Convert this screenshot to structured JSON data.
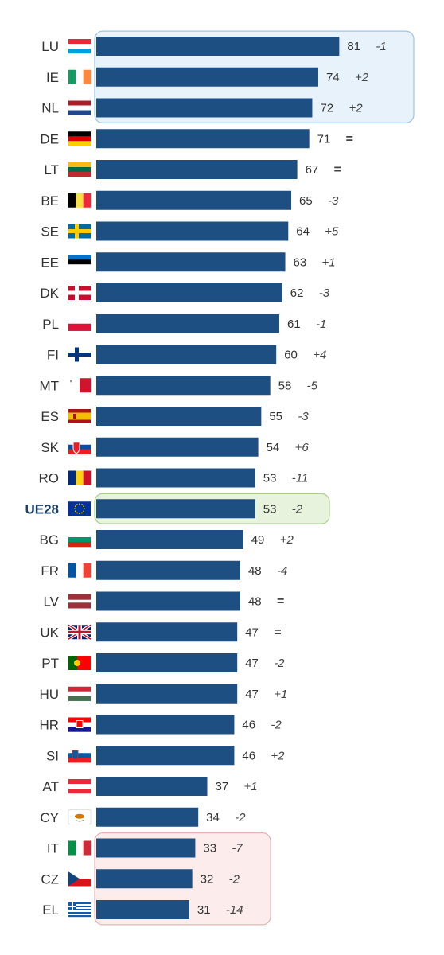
{
  "chart_data": {
    "type": "bar",
    "orientation": "horizontal",
    "categories": [
      "LU",
      "IE",
      "NL",
      "DE",
      "LT",
      "BE",
      "SE",
      "EE",
      "DK",
      "PL",
      "FI",
      "MT",
      "ES",
      "SK",
      "RO",
      "UE28",
      "BG",
      "FR",
      "LV",
      "UK",
      "PT",
      "HU",
      "HR",
      "SI",
      "AT",
      "CY",
      "IT",
      "CZ",
      "EL"
    ],
    "values": [
      81,
      74,
      72,
      71,
      67,
      65,
      64,
      63,
      62,
      61,
      60,
      58,
      55,
      54,
      53,
      53,
      49,
      48,
      48,
      47,
      47,
      47,
      46,
      46,
      37,
      34,
      33,
      32,
      31
    ],
    "changes": [
      "-1",
      "+2",
      "+2",
      "=",
      "=",
      "-3",
      "+5",
      "+1",
      "-3",
      "-1",
      "+4",
      "-5",
      "-3",
      "+6",
      "-11",
      "-2",
      "+2",
      "-4",
      "=",
      "=",
      "-2",
      "+1",
      "-2",
      "+2",
      "+1",
      "-2",
      "-7",
      "-2",
      "-14"
    ],
    "flags": [
      "luxembourg-flag",
      "ireland-flag",
      "netherlands-flag",
      "germany-flag",
      "lithuania-flag",
      "belgium-flag",
      "sweden-flag",
      "estonia-flag",
      "denmark-flag",
      "poland-flag",
      "finland-flag",
      "malta-flag",
      "spain-flag",
      "slovakia-flag",
      "romania-flag",
      "eu-flag",
      "bulgaria-flag",
      "france-flag",
      "latvia-flag",
      "uk-flag",
      "portugal-flag",
      "hungary-flag",
      "croatia-flag",
      "slovenia-flag",
      "austria-flag",
      "cyprus-flag",
      "italy-flag",
      "czechia-flag",
      "greece-flag"
    ],
    "highlight_category": "UE28",
    "groups": [
      {
        "name": "top",
        "from": 0,
        "to": 2,
        "color": "#e8f2fb",
        "border": "#9fc3e6"
      },
      {
        "name": "eu-average",
        "from": 15,
        "to": 15,
        "color": "#e7f3dc",
        "border": "#a9cf8f"
      },
      {
        "name": "bottom",
        "from": 26,
        "to": 28,
        "color": "#fcecec",
        "border": "#e6b3b3"
      }
    ],
    "bar_color": "#1e4f82",
    "xlim": [
      0,
      100
    ],
    "grid": false,
    "legend": "none",
    "title": "",
    "xlabel": "",
    "ylabel": ""
  }
}
